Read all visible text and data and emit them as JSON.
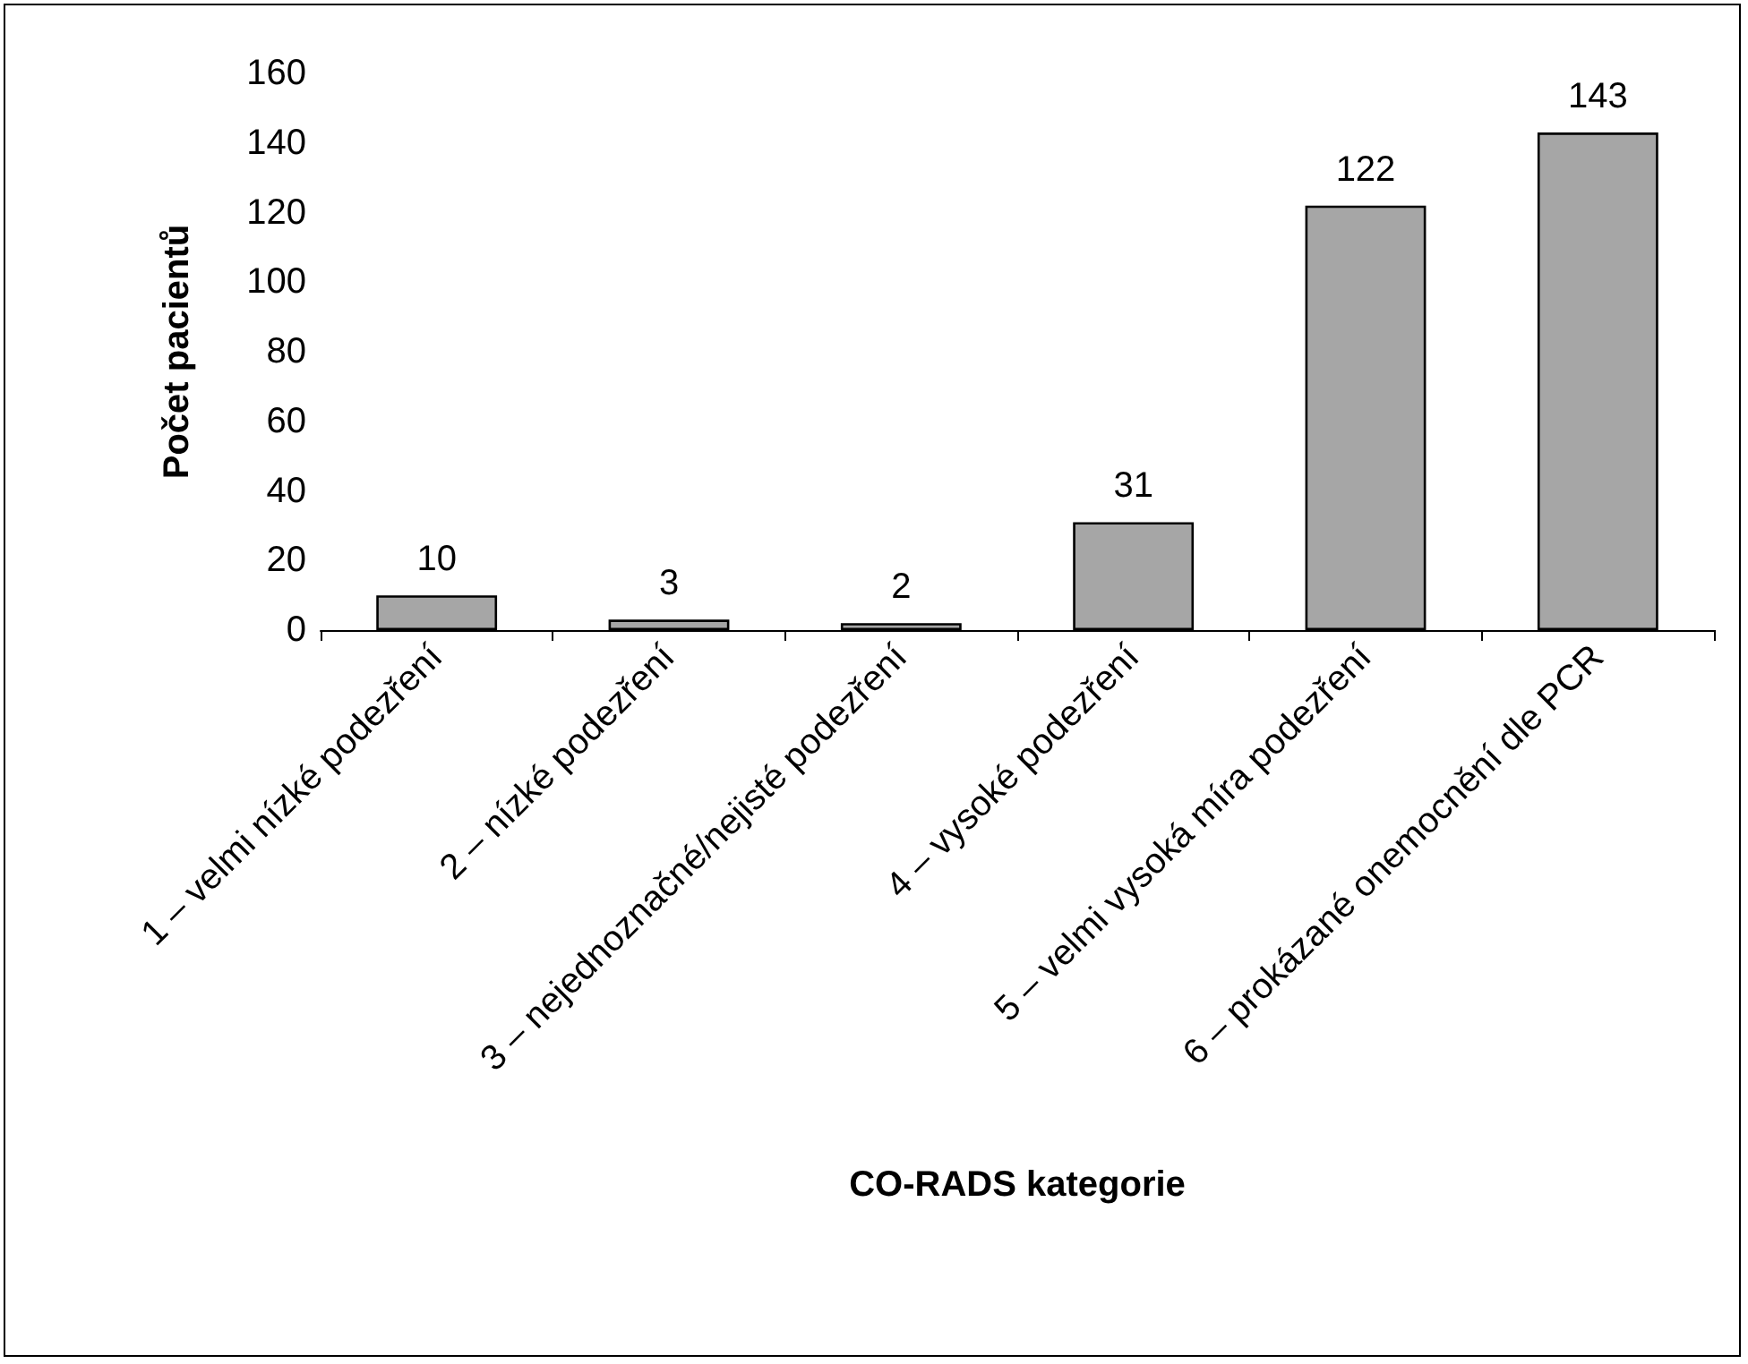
{
  "chart_data": {
    "type": "bar",
    "xlabel": "CO-RADS kategorie",
    "ylabel": "Počet pacientů",
    "categories": [
      "1 – velmi nízké podezření",
      "2 – nízké podezření",
      "3 – nejednoznačné/nejisté podezření",
      "4 – vysoké podezření",
      "5 – velmi vysoká míra podezření",
      "6 – prokázané onemocnění dle PCR"
    ],
    "values": [
      10,
      3,
      2,
      31,
      122,
      143
    ],
    "color": "#a6a6a6",
    "ylim": [
      0,
      160
    ],
    "yticks": [
      0,
      20,
      40,
      60,
      80,
      100,
      120,
      140,
      160
    ],
    "grid": false,
    "data_labels": true
  }
}
